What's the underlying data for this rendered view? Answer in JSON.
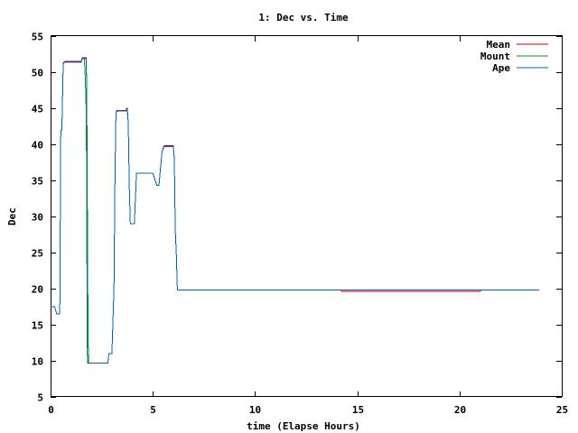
{
  "chart_data": {
    "type": "line",
    "title": "1: Dec vs. Time",
    "xlabel": "time (Elapse Hours)",
    "ylabel": "Dec",
    "xlim": [
      0,
      25
    ],
    "ylim": [
      5,
      55
    ],
    "xticks": [
      0,
      5,
      10,
      15,
      20,
      25
    ],
    "yticks": [
      5,
      10,
      15,
      20,
      25,
      30,
      35,
      40,
      45,
      50,
      55
    ],
    "grid": false,
    "legend_position": "top-right",
    "series": [
      {
        "name": "Mean",
        "color": "#c8001e",
        "x": [
          0,
          0.2,
          0.3,
          0.35,
          0.45,
          0.5,
          0.55,
          0.62,
          0.7,
          1.5,
          1.55,
          1.75,
          1.78,
          1.82,
          1.85,
          1.9,
          2.8,
          2.85,
          3.0,
          3.1,
          3.15,
          3.2,
          3.25,
          3.3,
          3.7,
          3.72,
          3.75,
          3.8,
          3.85,
          3.9,
          4.0,
          4.1,
          4.2,
          4.3,
          5.0,
          5.2,
          5.3,
          5.45,
          5.55,
          5.6,
          5.65,
          5.7,
          6.0,
          6.05,
          6.1,
          6.15,
          6.2,
          14.2,
          14.25,
          21.0,
          21.05,
          23.9
        ],
        "y": [
          17.5,
          17.5,
          16.5,
          16.5,
          16.5,
          42,
          42,
          51.3,
          51.5,
          51.5,
          52,
          52,
          42,
          20,
          9.7,
          9.7,
          9.7,
          11,
          11,
          20,
          35,
          44.5,
          44.7,
          44.7,
          44.7,
          45,
          45,
          43,
          34,
          29,
          29,
          29,
          36,
          36,
          36,
          34.3,
          34.3,
          39,
          39.8,
          39.8,
          39.8,
          39.8,
          39.8,
          38,
          28,
          25,
          19.8,
          19.8,
          19.6,
          19.6,
          19.8,
          19.8
        ]
      },
      {
        "name": "Mount",
        "color": "#00a000",
        "x": [
          0,
          0.2,
          0.3,
          0.35,
          0.45,
          0.5,
          0.55,
          0.62,
          0.7,
          1.5,
          1.55,
          1.65,
          1.7,
          1.75,
          1.78,
          1.8,
          1.85,
          1.9,
          2.8,
          2.85,
          3.0,
          3.1,
          3.15,
          3.2,
          3.25,
          3.3,
          3.7,
          3.75,
          3.8,
          3.85,
          3.9,
          4.0,
          4.1,
          4.2,
          4.3,
          5.0,
          5.2,
          5.3,
          5.45,
          5.55,
          5.6,
          5.7,
          6.0,
          6.05,
          6.1,
          6.15,
          6.2,
          23.9
        ],
        "y": [
          17.5,
          17.5,
          16.5,
          16.5,
          16.5,
          42,
          42,
          51.2,
          51.4,
          51.4,
          51.9,
          51.9,
          49,
          44,
          22,
          9.7,
          9.7,
          9.7,
          9.7,
          11,
          11,
          20,
          35,
          44.4,
          44.6,
          44.6,
          44.6,
          44.8,
          43,
          34,
          29,
          29,
          29,
          36,
          36,
          36,
          34.3,
          34.3,
          39,
          39.7,
          39.7,
          39.7,
          39.7,
          38,
          28,
          25,
          19.8,
          19.8
        ]
      },
      {
        "name": "Ape",
        "color": "#0064b4",
        "x": [
          0,
          0.2,
          0.3,
          0.35,
          0.45,
          0.5,
          0.55,
          0.62,
          0.7,
          1.5,
          1.55,
          1.75,
          1.78,
          1.82,
          1.85,
          1.9,
          2.8,
          2.85,
          3.0,
          3.1,
          3.15,
          3.2,
          3.25,
          3.3,
          3.7,
          3.75,
          3.8,
          3.85,
          3.9,
          4.0,
          4.1,
          4.2,
          4.3,
          5.0,
          5.2,
          5.3,
          5.45,
          5.55,
          5.6,
          5.7,
          6.0,
          6.05,
          6.1,
          6.15,
          6.2,
          23.9
        ],
        "y": [
          17.5,
          17.5,
          16.5,
          16.5,
          16.5,
          42,
          42,
          51.2,
          51.4,
          51.4,
          51.9,
          51.9,
          42,
          20,
          9.7,
          9.7,
          9.7,
          11,
          11,
          20,
          35,
          44.4,
          44.6,
          44.6,
          44.6,
          44.8,
          43,
          34,
          29,
          29,
          29,
          36,
          36,
          36,
          34.3,
          34.3,
          39,
          39.7,
          39.7,
          39.7,
          39.7,
          38,
          28,
          25,
          19.8,
          19.8
        ]
      }
    ]
  }
}
